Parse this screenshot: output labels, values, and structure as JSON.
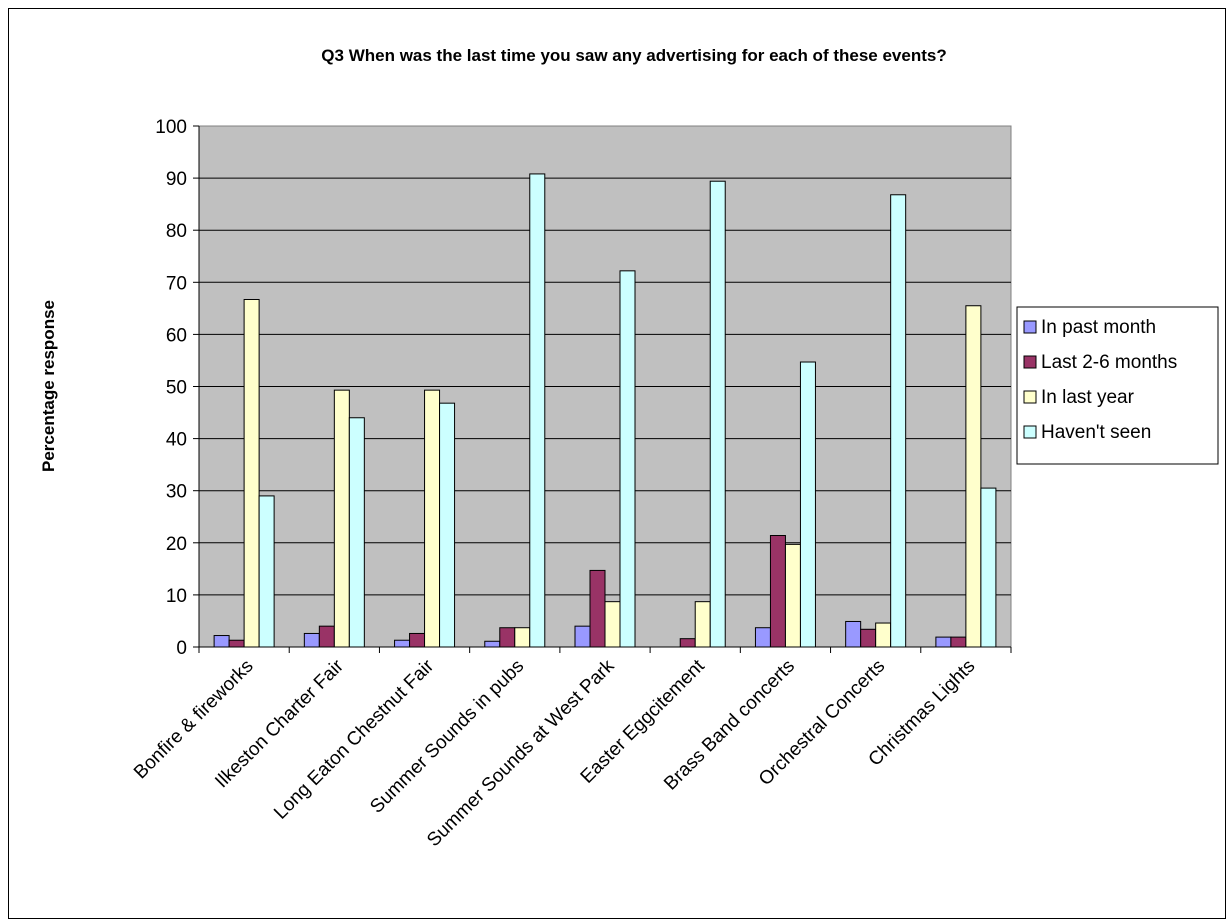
{
  "chart_data": {
    "type": "bar",
    "title": "Q3 When was the last time you saw any advertising for each of these events?",
    "xlabel": "",
    "ylabel": "Percentage response",
    "ylim": [
      0,
      100
    ],
    "yticks": [
      0,
      10,
      20,
      30,
      40,
      50,
      60,
      70,
      80,
      90,
      100
    ],
    "grid": true,
    "legend_position": "right",
    "categories": [
      "Bonfire & fireworks",
      "Ilkeston Charter Fair",
      "Long Eaton Chestnut Fair",
      "Summer Sounds in pubs",
      "Summer Sounds at West Park",
      "Easter Eggcitement",
      "Brass Band concerts",
      "Orchestral Concerts",
      "Christmas Lights"
    ],
    "series": [
      {
        "name": "In past month",
        "color": "#9999ff",
        "values": [
          2.2,
          2.6,
          1.3,
          1.1,
          4.0,
          0,
          3.7,
          4.9,
          1.9
        ]
      },
      {
        "name": "Last 2-6 months",
        "color": "#993366",
        "values": [
          1.3,
          4.0,
          2.6,
          3.7,
          14.7,
          1.6,
          21.4,
          3.4,
          1.9
        ]
      },
      {
        "name": "In last year",
        "color": "#ffffcc",
        "values": [
          66.7,
          49.3,
          49.3,
          3.7,
          8.7,
          8.7,
          19.7,
          4.6,
          65.5
        ]
      },
      {
        "name": "Haven't seen",
        "color": "#ccffff",
        "values": [
          29.0,
          44.0,
          46.8,
          90.8,
          72.2,
          89.4,
          54.7,
          86.8,
          30.5
        ]
      }
    ]
  }
}
